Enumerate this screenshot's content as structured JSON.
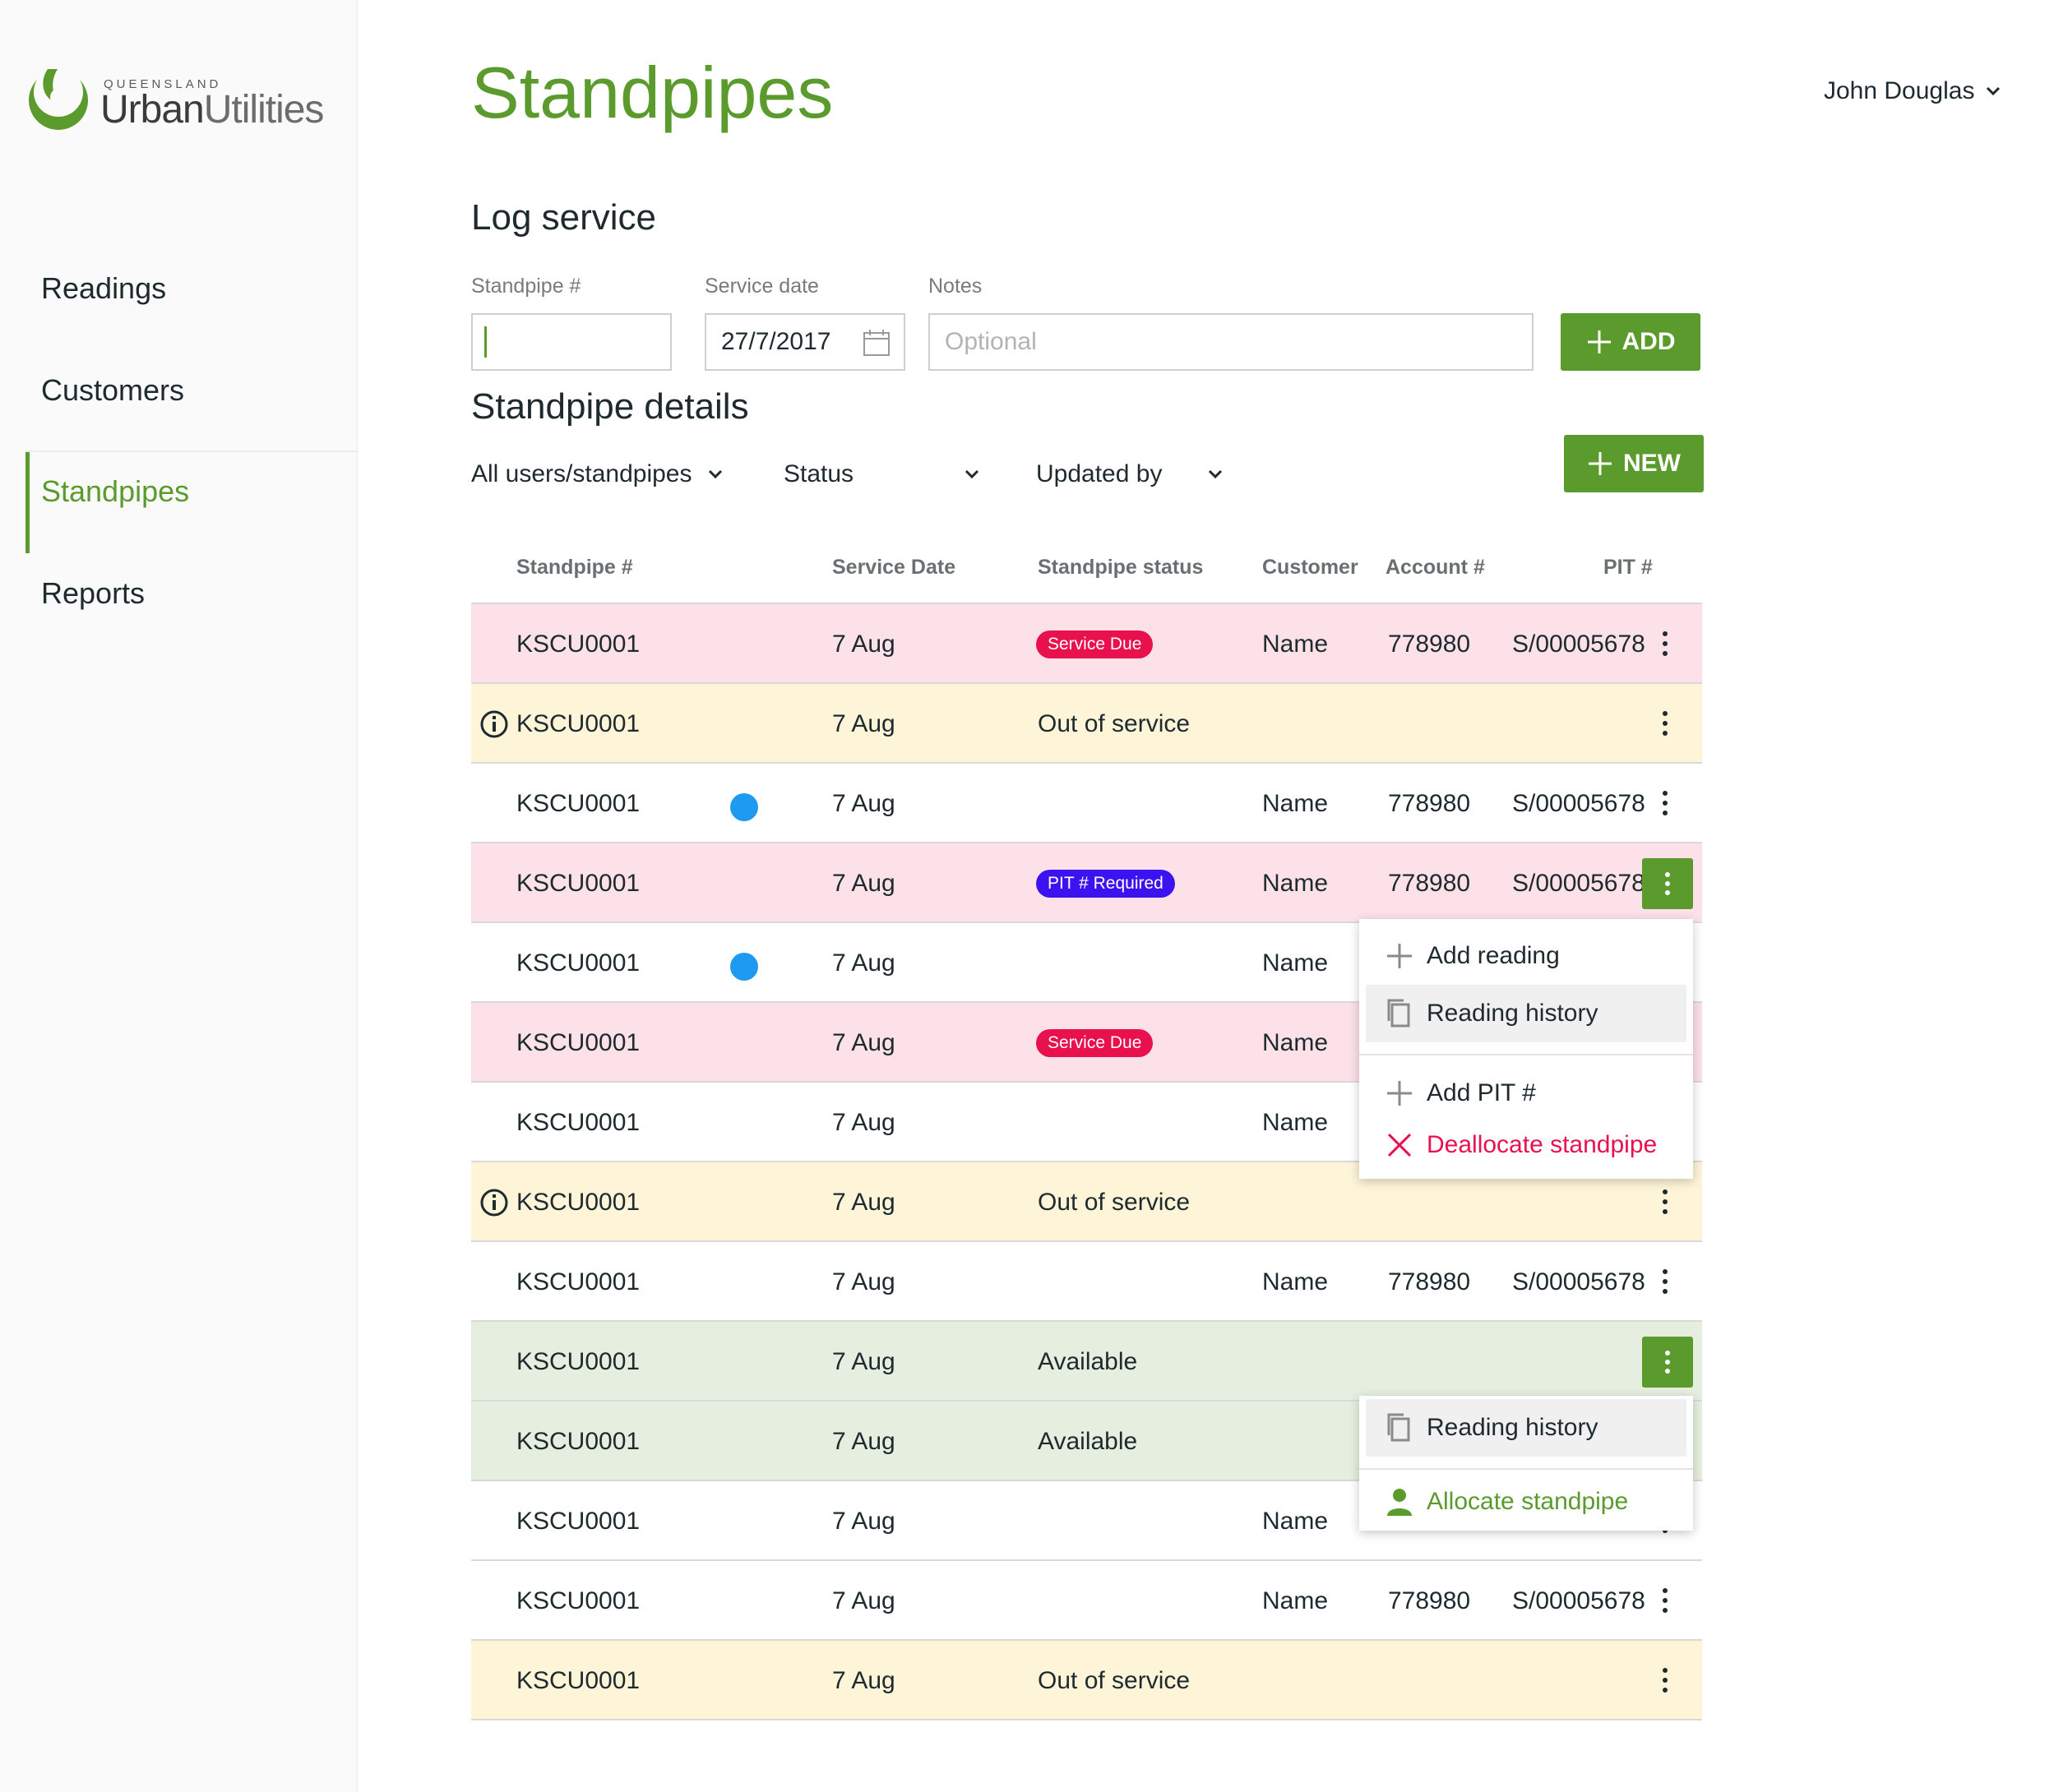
{
  "brand": {
    "line1": "QUEENSLAND",
    "line2_bold": "Urban",
    "line2_light": "Utilities",
    "accent": "#5b9a2d"
  },
  "nav": {
    "items": [
      {
        "label": "Readings"
      },
      {
        "label": "Customers"
      },
      {
        "label": "Standpipes",
        "active": true
      },
      {
        "label": "Reports"
      }
    ]
  },
  "header": {
    "title": "Standpipes",
    "user": "John Douglas"
  },
  "log_service": {
    "title": "Log service",
    "standpipe_label": "Standpipe #",
    "standpipe_value": "",
    "date_label": "Service date",
    "date_value": "27/7/2017",
    "notes_label": "Notes",
    "notes_placeholder": "Optional",
    "add_label": "ADD"
  },
  "details": {
    "title": "Standpipe details",
    "filters": [
      "All users/standpipes",
      "Status",
      "Updated by"
    ],
    "new_label": "NEW"
  },
  "table": {
    "columns": [
      "Standpipe #",
      "Service Date",
      "Standpipe status",
      "Customer",
      "Account #",
      "PIT #"
    ],
    "rows": [
      {
        "tone": "pink",
        "id": "KSCU0001",
        "date": "7 Aug",
        "status": "Service Due",
        "status_kind": "badge-due",
        "customer": "Name",
        "account": "778980",
        "pit": "S/00005678"
      },
      {
        "tone": "yellow",
        "id": "KSCU0001",
        "date": "7 Aug",
        "status": "Out of service",
        "info": true,
        "customer": "",
        "account": "",
        "pit": ""
      },
      {
        "tone": "white",
        "id": "KSCU0001",
        "date": "7 Aug",
        "status": "",
        "dot": true,
        "customer": "Name",
        "account": "778980",
        "pit": "S/00005678"
      },
      {
        "tone": "pink",
        "id": "KSCU0001",
        "date": "7 Aug",
        "status": "PIT # Required",
        "status_kind": "badge-pit",
        "customer": "Name",
        "account": "778980",
        "pit": "S/00005678",
        "menu_open": true
      },
      {
        "tone": "white",
        "id": "KSCU0001",
        "date": "7 Aug",
        "status": "",
        "dot": true,
        "customer": "Name",
        "account": "",
        "pit": ""
      },
      {
        "tone": "pink",
        "id": "KSCU0001",
        "date": "7 Aug",
        "status": "Service Due",
        "status_kind": "badge-due",
        "customer": "Name",
        "account": "",
        "pit": ""
      },
      {
        "tone": "white",
        "id": "KSCU0001",
        "date": "7 Aug",
        "status": "",
        "customer": "Name",
        "account": "",
        "pit": ""
      },
      {
        "tone": "yellow",
        "id": "KSCU0001",
        "date": "7 Aug",
        "status": "Out of service",
        "info": true,
        "customer": "",
        "account": "",
        "pit": ""
      },
      {
        "tone": "white",
        "id": "KSCU0001",
        "date": "7 Aug",
        "status": "",
        "customer": "Name",
        "account": "778980",
        "pit": "S/00005678"
      },
      {
        "tone": "green",
        "id": "KSCU0001",
        "date": "7 Aug",
        "status": "Available",
        "customer": "",
        "account": "",
        "pit": "",
        "menu_open": true
      },
      {
        "tone": "green",
        "id": "KSCU0001",
        "date": "7 Aug",
        "status": "Available",
        "customer": "",
        "account": "",
        "pit": ""
      },
      {
        "tone": "white",
        "id": "KSCU0001",
        "date": "7 Aug",
        "status": "",
        "customer": "Name",
        "account": "",
        "pit": ""
      },
      {
        "tone": "white",
        "id": "KSCU0001",
        "date": "7 Aug",
        "status": "",
        "customer": "Name",
        "account": "778980",
        "pit": "S/00005678"
      },
      {
        "tone": "yellow",
        "id": "KSCU0001",
        "date": "7 Aug",
        "status": "Out of service",
        "customer": "",
        "account": "",
        "pit": ""
      }
    ]
  },
  "menu1": {
    "items": [
      {
        "label": "Add reading",
        "icon": "plus-icon"
      },
      {
        "label": "Reading history",
        "icon": "copy-icon",
        "highlighted": true
      },
      {
        "label": "Add PIT #",
        "icon": "plus-icon"
      },
      {
        "label": "Deallocate standpipe",
        "icon": "close-icon",
        "danger": true
      }
    ]
  },
  "menu2": {
    "items": [
      {
        "label": "Reading history",
        "icon": "copy-icon",
        "highlighted": true
      },
      {
        "label": "Allocate standpipe",
        "icon": "person-icon"
      }
    ]
  },
  "colors": {
    "pink_row": "#fde1e8",
    "yellow_row": "#fef4d8",
    "green_row": "#e6efdf",
    "service_due": "#e8104d",
    "pit_required": "#3d12f0",
    "dot": "#1e9af0",
    "danger": "#e8104d"
  }
}
